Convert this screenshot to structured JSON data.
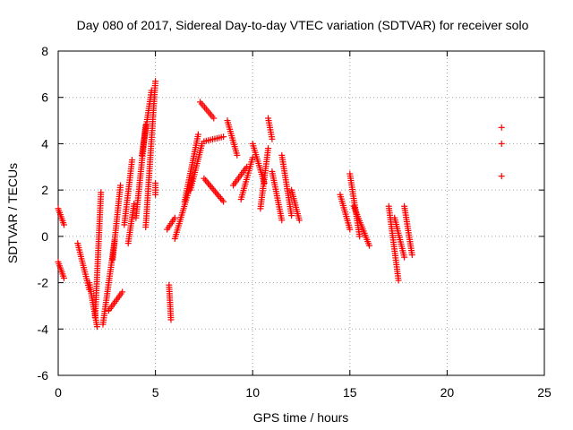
{
  "chart_data": {
    "type": "scatter",
    "title": "Day 080 of 2017, Sidereal Day-to-day VTEC variation (SDTVAR) for receiver solo",
    "xlabel": "GPS time / hours",
    "ylabel": "SDTVAR / TECUs",
    "xlim": [
      0,
      25
    ],
    "ylim": [
      -6,
      8
    ],
    "xticks": [
      0,
      5,
      10,
      15,
      20,
      25
    ],
    "yticks": [
      -6,
      -4,
      -2,
      0,
      2,
      4,
      6,
      8
    ],
    "grid": true,
    "marker": "+",
    "color": "#ff0000",
    "segments": [
      {
        "x": [
          0.0,
          0.3
        ],
        "y": [
          1.2,
          0.5
        ]
      },
      {
        "x": [
          0.0,
          0.3
        ],
        "y": [
          -1.1,
          -1.8
        ]
      },
      {
        "x": [
          1.0,
          1.6
        ],
        "y": [
          -0.3,
          -2.3
        ]
      },
      {
        "x": [
          1.6,
          2.0
        ],
        "y": [
          -2.0,
          -3.9
        ]
      },
      {
        "x": [
          1.9,
          2.2
        ],
        "y": [
          -3.5,
          1.9
        ]
      },
      {
        "x": [
          2.3,
          2.9
        ],
        "y": [
          -3.8,
          -0.2
        ]
      },
      {
        "x": [
          2.6,
          3.3
        ],
        "y": [
          -3.2,
          -2.4
        ]
      },
      {
        "x": [
          2.8,
          3.2
        ],
        "y": [
          -1.0,
          2.2
        ]
      },
      {
        "x": [
          3.4,
          3.8
        ],
        "y": [
          0.5,
          3.3
        ]
      },
      {
        "x": [
          3.6,
          3.9
        ],
        "y": [
          -0.3,
          1.4
        ]
      },
      {
        "x": [
          4.0,
          4.5
        ],
        "y": [
          0.8,
          4.8
        ]
      },
      {
        "x": [
          4.3,
          4.8
        ],
        "y": [
          3.5,
          6.3
        ]
      },
      {
        "x": [
          4.5,
          5.0
        ],
        "y": [
          0.4,
          6.7
        ]
      },
      {
        "x": [
          5.0,
          5.0
        ],
        "y": [
          1.8,
          2.3
        ]
      },
      {
        "x": [
          5.7,
          5.8
        ],
        "y": [
          -2.1,
          -3.6
        ]
      },
      {
        "x": [
          5.6,
          6.0
        ],
        "y": [
          0.3,
          0.8
        ]
      },
      {
        "x": [
          6.0,
          6.9
        ],
        "y": [
          -0.1,
          2.5
        ]
      },
      {
        "x": [
          6.5,
          7.2
        ],
        "y": [
          1.5,
          4.4
        ]
      },
      {
        "x": [
          6.8,
          7.4
        ],
        "y": [
          2.0,
          4.0
        ]
      },
      {
        "x": [
          7.3,
          8.0
        ],
        "y": [
          5.8,
          5.1
        ]
      },
      {
        "x": [
          7.5,
          8.5
        ],
        "y": [
          4.1,
          4.3
        ]
      },
      {
        "x": [
          7.5,
          8.5
        ],
        "y": [
          2.5,
          1.5
        ]
      },
      {
        "x": [
          8.7,
          9.2
        ],
        "y": [
          5.0,
          3.5
        ]
      },
      {
        "x": [
          9.0,
          9.7
        ],
        "y": [
          2.2,
          3.0
        ]
      },
      {
        "x": [
          9.4,
          10.0
        ],
        "y": [
          1.6,
          3.4
        ]
      },
      {
        "x": [
          10.0,
          10.6
        ],
        "y": [
          4.0,
          2.3
        ]
      },
      {
        "x": [
          10.4,
          10.8
        ],
        "y": [
          1.2,
          3.8
        ]
      },
      {
        "x": [
          10.8,
          11.0
        ],
        "y": [
          5.1,
          4.2
        ]
      },
      {
        "x": [
          11.0,
          11.5
        ],
        "y": [
          2.8,
          0.7
        ]
      },
      {
        "x": [
          11.5,
          12.0
        ],
        "y": [
          3.5,
          0.9
        ]
      },
      {
        "x": [
          12.0,
          12.4
        ],
        "y": [
          2.0,
          0.7
        ]
      },
      {
        "x": [
          14.5,
          15.0
        ],
        "y": [
          1.8,
          0.3
        ]
      },
      {
        "x": [
          15.0,
          15.5
        ],
        "y": [
          2.7,
          0.0
        ]
      },
      {
        "x": [
          15.2,
          16.0
        ],
        "y": [
          1.3,
          -0.4
        ]
      },
      {
        "x": [
          17.0,
          17.5
        ],
        "y": [
          1.3,
          -1.9
        ]
      },
      {
        "x": [
          17.3,
          17.8
        ],
        "y": [
          0.8,
          -0.9
        ]
      },
      {
        "x": [
          17.8,
          18.2
        ],
        "y": [
          1.3,
          -0.8
        ]
      }
    ],
    "points": [
      {
        "x": 22.8,
        "y": 4.7
      },
      {
        "x": 22.8,
        "y": 4.0
      },
      {
        "x": 22.8,
        "y": 2.6
      }
    ]
  }
}
